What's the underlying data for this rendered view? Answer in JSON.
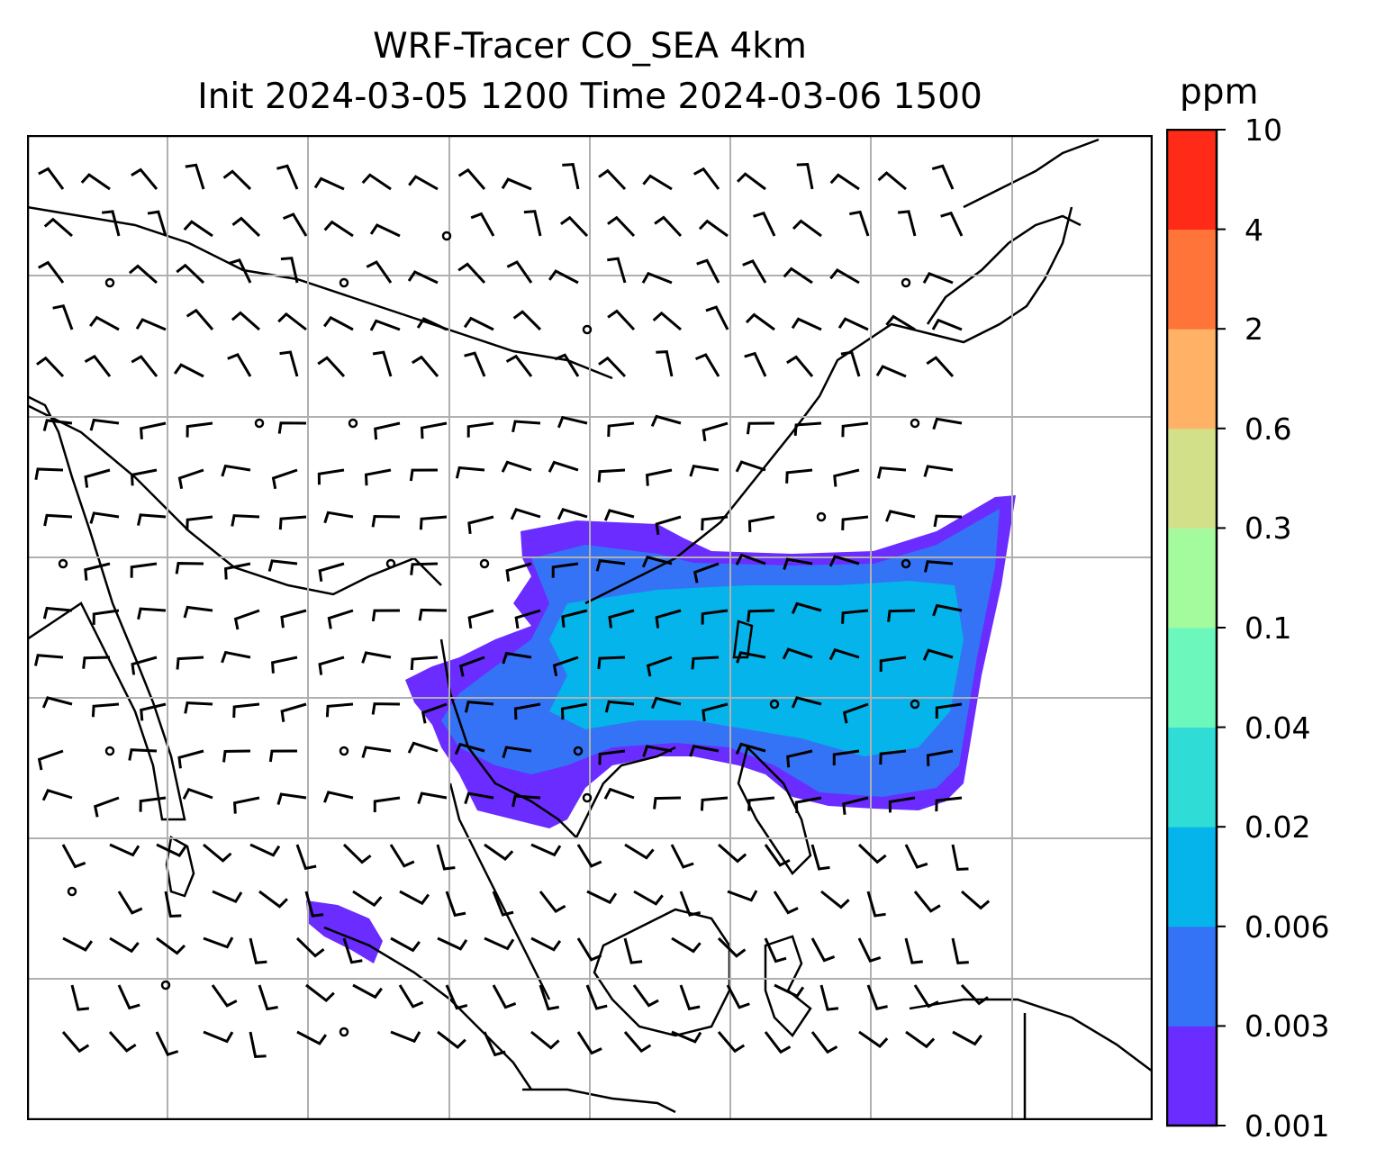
{
  "title_line1": "WRF-Tracer CO_SEA 4km",
  "title_line2": "Init 2024-03-05 1200 Time 2024-03-06 1500",
  "colorbar": {
    "unit": "ppm",
    "levels": [
      "0.001",
      "0.003",
      "0.006",
      "0.02",
      "0.04",
      "0.1",
      "0.3",
      "0.6",
      "2",
      "4",
      "10"
    ],
    "colors": [
      "#6a2cff",
      "#3473f5",
      "#04b4eb",
      "#30ddd6",
      "#6cf7bd",
      "#a3fb9d",
      "#d2e08a",
      "#ffb265",
      "#ff7539",
      "#ff2a17"
    ]
  },
  "colors": {
    "coastline": "#000000",
    "gridline": "#b0b0b0",
    "wind_barb": "#000000"
  },
  "map": {
    "features": [
      "coastlines",
      "country-borders",
      "gridlines",
      "wind-barbs",
      "co-tracer-plume"
    ]
  }
}
